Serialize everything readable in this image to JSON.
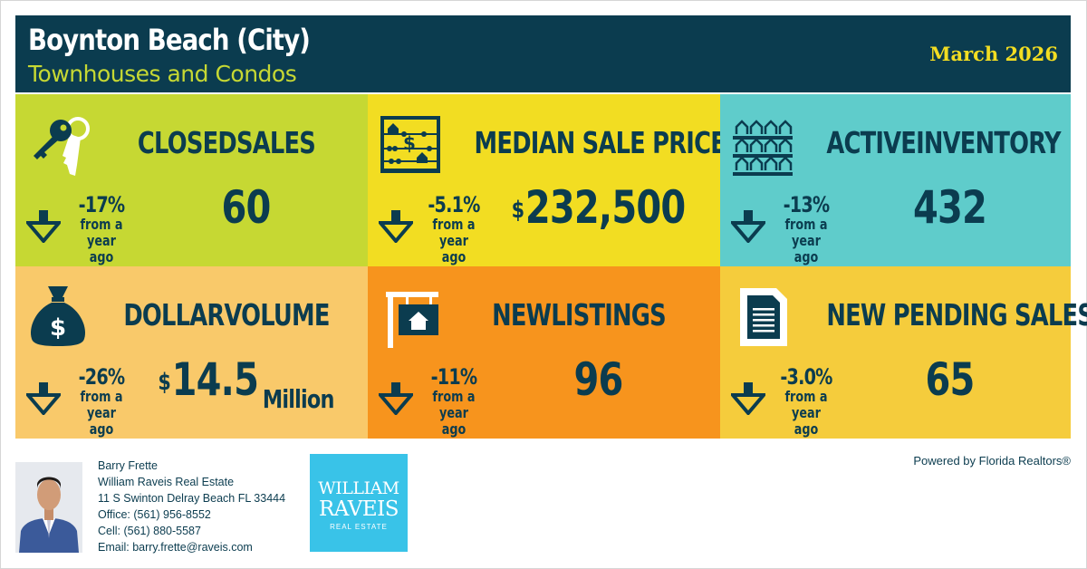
{
  "header": {
    "title": "Boynton Beach (City)",
    "subtitle": "Townhouses and Condos",
    "date": "March 2026"
  },
  "colors": {
    "navy": "#0b3c4f",
    "green": "#c6d833",
    "yellow": "#f2dd22",
    "teal": "#5fcccb",
    "peach": "#f9c96a",
    "orange": "#f7941d",
    "gold": "#f5cc3c"
  },
  "tiles": [
    {
      "icon": "keys-icon",
      "label": "CLOSEDSALES",
      "change": "-17%",
      "from_line1": "from a",
      "from_line2": "year ago",
      "currency": "",
      "value": "60",
      "unit": ""
    },
    {
      "icon": "abacus-icon",
      "label": "MEDIAN SALE PRICE",
      "change": "-5.1%",
      "from_line1": "from a",
      "from_line2": "year ago",
      "currency": "$",
      "value": "232,500",
      "unit": ""
    },
    {
      "icon": "house-rows-icon",
      "label": "ACTIVEINVENTORY",
      "change": "-13%",
      "from_line1": "from a",
      "from_line2": "year ago",
      "currency": "",
      "value": "432",
      "unit": ""
    },
    {
      "icon": "money-bag-icon",
      "label": "DOLLARVOLUME",
      "change": "-26%",
      "from_line1": "from a",
      "from_line2": "year ago",
      "currency": "$",
      "value": "14.5",
      "unit": "Million"
    },
    {
      "icon": "for-sale-sign-icon",
      "label": "NEWLISTINGS",
      "change": "-11%",
      "from_line1": "from a",
      "from_line2": "year ago",
      "currency": "",
      "value": "96",
      "unit": ""
    },
    {
      "icon": "document-icon",
      "label": "NEW PENDING SALES",
      "change": "-3.0%",
      "from_line1": "from a",
      "from_line2": "year ago",
      "currency": "",
      "value": "65",
      "unit": ""
    }
  ],
  "agent": {
    "name": "Barry Frette",
    "company": "William Raveis Real Estate",
    "address": "11 S Swinton Delray Beach FL 33444",
    "office": "Office: (561) 956-8552",
    "cell": "Cell: (561) 880-5587",
    "email": "Email: barry.frette@raveis.com"
  },
  "logo": {
    "line1": "WILLIAM",
    "line2": "RAVEIS",
    "line3": "REAL ESTATE"
  },
  "footer": {
    "powered_by": "Powered by Florida Realtors®"
  }
}
